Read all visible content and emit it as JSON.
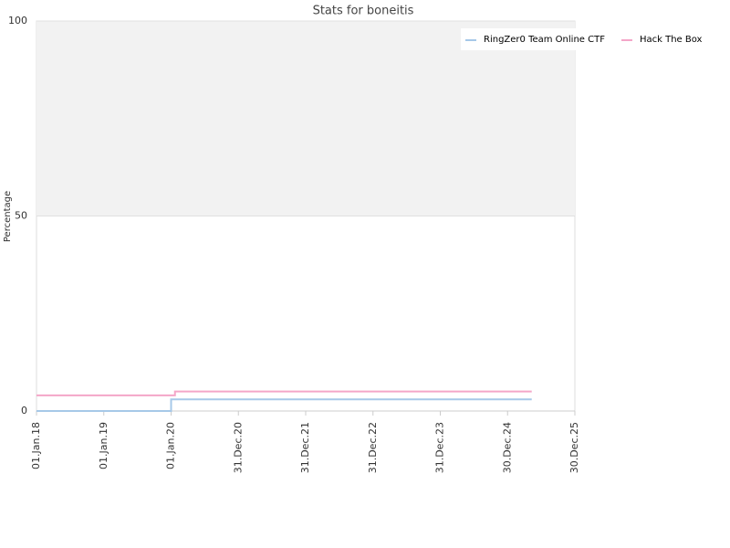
{
  "chart_data": {
    "type": "line",
    "title": "Stats for boneitis",
    "y_label": "Percentage",
    "x": [
      "01.Jan.18",
      "01.Jan.20",
      "15.Jan.20",
      "22.Jan.20",
      "10.May.25"
    ],
    "series": [
      {
        "name": "RingZer0 Team Online CTF",
        "color": "#a6c8e8",
        "values": [
          0,
          3,
          3,
          3,
          3
        ]
      },
      {
        "name": "Hack The Box",
        "color": "#f4a6c8",
        "values": [
          4,
          4,
          4,
          5,
          5
        ]
      }
    ],
    "xlim": [
      "01.Jan.18",
      "30.Dec.25"
    ],
    "xticks": [
      "01.Jan.18",
      "01.Jan.19",
      "01.Jan.20",
      "31.Dec.20",
      "31.Dec.21",
      "31.Dec.22",
      "31.Dec.23",
      "30.Dec.24",
      "30.Dec.25"
    ],
    "ylim": [
      0,
      100
    ],
    "yticks": [
      0,
      50,
      100
    ],
    "plot_band": [
      50,
      100
    ],
    "step": true,
    "legend": "top-right"
  }
}
